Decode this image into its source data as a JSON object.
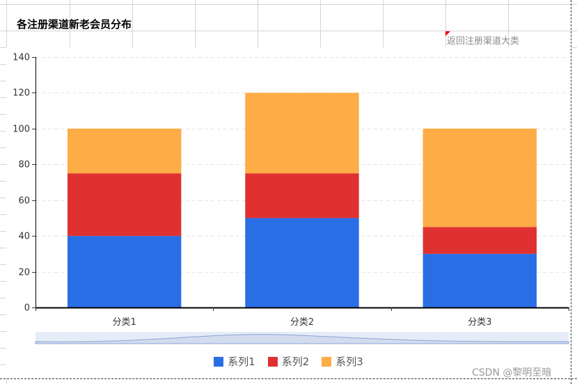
{
  "header": {
    "title": "各注册渠道新老会员分布",
    "back_link": "返回注册渠道大类"
  },
  "watermark": "CSDN @黎明至暗",
  "colors": {
    "series1": "#2a6ee6",
    "series2": "#e03131",
    "series3": "#feac45",
    "axis": "#000000",
    "grid": "#e3e3e3",
    "slider_bg": "#e6ecf7"
  },
  "chart_data": {
    "type": "bar",
    "stacked": true,
    "categories": [
      "分类1",
      "分类2",
      "分类3"
    ],
    "series": [
      {
        "name": "系列1",
        "values": [
          40,
          50,
          30
        ]
      },
      {
        "name": "系列2",
        "values": [
          35,
          25,
          15
        ]
      },
      {
        "name": "系列3",
        "values": [
          25,
          45,
          55
        ]
      }
    ],
    "ylim": [
      0,
      140
    ],
    "yticks": [
      0,
      20,
      40,
      60,
      80,
      100,
      120,
      140
    ],
    "grid": true,
    "legend_position": "bottom-center",
    "xlabel": "",
    "ylabel": ""
  }
}
